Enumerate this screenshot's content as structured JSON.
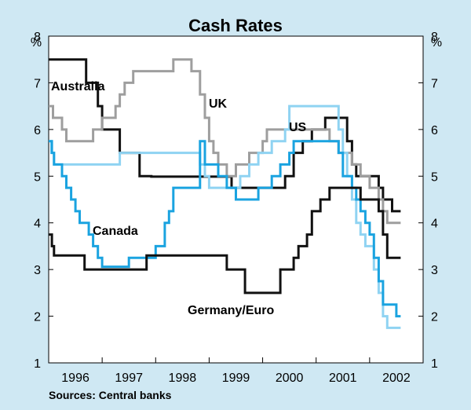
{
  "chart_data": {
    "type": "line",
    "title": "Cash Rates",
    "ylabel": "%",
    "ylim": [
      1,
      8
    ],
    "yticks": [
      1,
      2,
      3,
      4,
      5,
      6,
      7,
      8
    ],
    "xlim": [
      1995.5,
      2002.5
    ],
    "xticks": [
      {
        "label": "1996",
        "x": 1996
      },
      {
        "label": "1997",
        "x": 1997
      },
      {
        "label": "1998",
        "x": 1998
      },
      {
        "label": "1999",
        "x": 1999
      },
      {
        "label": "2000",
        "x": 2000
      },
      {
        "label": "2001",
        "x": 2001
      },
      {
        "label": "2002",
        "x": 2002
      }
    ],
    "source": "Sources: Central banks",
    "series": [
      {
        "name": "Australia",
        "label": "Australia",
        "color": "#111111",
        "points": [
          [
            1995.5,
            7.5
          ],
          [
            1996.2,
            7.5
          ],
          [
            1996.2,
            7.0
          ],
          [
            1996.42,
            7.0
          ],
          [
            1996.42,
            6.5
          ],
          [
            1996.5,
            6.5
          ],
          [
            1996.5,
            6.0
          ],
          [
            1996.83,
            6.0
          ],
          [
            1996.83,
            5.5
          ],
          [
            1997.2,
            5.5
          ],
          [
            1997.2,
            5.0
          ],
          [
            1997.42,
            5.0
          ],
          [
            1997.42,
            4.99
          ],
          [
            1998.92,
            4.99
          ],
          [
            1998.92,
            4.75
          ],
          [
            1999.92,
            4.75
          ],
          [
            1999.92,
            5.0
          ],
          [
            2000.08,
            5.0
          ],
          [
            2000.08,
            5.5
          ],
          [
            2000.25,
            5.5
          ],
          [
            2000.25,
            5.75
          ],
          [
            2000.42,
            5.75
          ],
          [
            2000.42,
            6.0
          ],
          [
            2000.67,
            6.0
          ],
          [
            2000.67,
            6.25
          ],
          [
            2001.08,
            6.25
          ],
          [
            2001.08,
            5.75
          ],
          [
            2001.17,
            5.75
          ],
          [
            2001.17,
            5.25
          ],
          [
            2001.25,
            5.25
          ],
          [
            2001.25,
            5.0
          ],
          [
            2001.67,
            5.0
          ],
          [
            2001.67,
            4.75
          ],
          [
            2001.75,
            4.75
          ],
          [
            2001.75,
            4.5
          ],
          [
            2001.92,
            4.5
          ],
          [
            2001.92,
            4.25
          ],
          [
            2002.08,
            4.25
          ]
        ]
      },
      {
        "name": "UK",
        "label": "UK",
        "color": "#9e9e9e",
        "points": [
          [
            1995.5,
            6.5
          ],
          [
            1995.58,
            6.5
          ],
          [
            1995.58,
            6.25
          ],
          [
            1995.75,
            6.25
          ],
          [
            1995.75,
            6.0
          ],
          [
            1995.83,
            6.0
          ],
          [
            1995.83,
            5.75
          ],
          [
            1996.33,
            5.75
          ],
          [
            1996.33,
            6.0
          ],
          [
            1996.5,
            6.0
          ],
          [
            1996.5,
            6.25
          ],
          [
            1996.75,
            6.25
          ],
          [
            1996.75,
            6.5
          ],
          [
            1996.83,
            6.5
          ],
          [
            1996.83,
            6.75
          ],
          [
            1996.92,
            6.75
          ],
          [
            1996.92,
            7.0
          ],
          [
            1997.08,
            7.0
          ],
          [
            1997.08,
            7.25
          ],
          [
            1997.83,
            7.25
          ],
          [
            1997.83,
            7.5
          ],
          [
            1998.17,
            7.5
          ],
          [
            1998.17,
            7.25
          ],
          [
            1998.33,
            7.25
          ],
          [
            1998.33,
            6.75
          ],
          [
            1998.42,
            6.75
          ],
          [
            1998.42,
            6.25
          ],
          [
            1998.5,
            6.25
          ],
          [
            1998.5,
            5.75
          ],
          [
            1998.58,
            5.75
          ],
          [
            1998.58,
            5.5
          ],
          [
            1998.67,
            5.5
          ],
          [
            1998.67,
            5.25
          ],
          [
            1998.83,
            5.25
          ],
          [
            1998.83,
            5.0
          ],
          [
            1999.0,
            5.0
          ],
          [
            1999.0,
            5.25
          ],
          [
            1999.25,
            5.25
          ],
          [
            1999.25,
            5.5
          ],
          [
            1999.5,
            5.5
          ],
          [
            1999.5,
            5.75
          ],
          [
            1999.58,
            5.75
          ],
          [
            1999.58,
            6.0
          ],
          [
            2000.75,
            6.0
          ],
          [
            2000.75,
            5.75
          ],
          [
            2000.92,
            5.75
          ],
          [
            2000.92,
            5.5
          ],
          [
            2001.17,
            5.5
          ],
          [
            2001.17,
            5.25
          ],
          [
            2001.33,
            5.25
          ],
          [
            2001.33,
            5.0
          ],
          [
            2001.5,
            5.0
          ],
          [
            2001.5,
            4.75
          ],
          [
            2001.67,
            4.75
          ],
          [
            2001.67,
            4.5
          ],
          [
            2001.75,
            4.5
          ],
          [
            2001.75,
            4.25
          ],
          [
            2001.83,
            4.25
          ],
          [
            2001.83,
            4.0
          ],
          [
            2002.08,
            4.0
          ]
        ]
      },
      {
        "name": "US",
        "label": "US",
        "color": "#8fd3f2",
        "points": [
          [
            1995.5,
            5.75
          ],
          [
            1995.55,
            5.75
          ],
          [
            1995.55,
            5.5
          ],
          [
            1995.6,
            5.5
          ],
          [
            1995.6,
            5.25
          ],
          [
            1996.83,
            5.25
          ],
          [
            1996.83,
            5.5
          ],
          [
            1998.33,
            5.5
          ],
          [
            1998.33,
            5.25
          ],
          [
            1998.42,
            5.25
          ],
          [
            1998.42,
            5.0
          ],
          [
            1998.5,
            5.0
          ],
          [
            1998.5,
            4.75
          ],
          [
            1999.08,
            4.75
          ],
          [
            1999.08,
            5.0
          ],
          [
            1999.25,
            5.0
          ],
          [
            1999.25,
            5.25
          ],
          [
            1999.42,
            5.25
          ],
          [
            1999.42,
            5.5
          ],
          [
            1999.67,
            5.5
          ],
          [
            1999.67,
            5.75
          ],
          [
            1999.92,
            5.75
          ],
          [
            1999.92,
            6.0
          ],
          [
            2000.0,
            6.0
          ],
          [
            2000.0,
            6.5
          ],
          [
            2000.92,
            6.5
          ],
          [
            2000.92,
            6.0
          ],
          [
            2001.0,
            6.0
          ],
          [
            2001.0,
            5.5
          ],
          [
            2001.08,
            5.5
          ],
          [
            2001.08,
            5.0
          ],
          [
            2001.17,
            5.0
          ],
          [
            2001.17,
            4.5
          ],
          [
            2001.25,
            4.5
          ],
          [
            2001.25,
            4.0
          ],
          [
            2001.33,
            4.0
          ],
          [
            2001.33,
            3.75
          ],
          [
            2001.42,
            3.75
          ],
          [
            2001.42,
            3.5
          ],
          [
            2001.58,
            3.5
          ],
          [
            2001.58,
            3.0
          ],
          [
            2001.67,
            3.0
          ],
          [
            2001.67,
            2.5
          ],
          [
            2001.75,
            2.5
          ],
          [
            2001.75,
            2.0
          ],
          [
            2001.83,
            2.0
          ],
          [
            2001.83,
            1.75
          ],
          [
            2002.08,
            1.75
          ]
        ]
      },
      {
        "name": "Canada",
        "label": "Canada",
        "color": "#1aa3e0",
        "points": [
          [
            1995.5,
            5.75
          ],
          [
            1995.56,
            5.75
          ],
          [
            1995.56,
            5.5
          ],
          [
            1995.6,
            5.5
          ],
          [
            1995.6,
            5.25
          ],
          [
            1995.75,
            5.25
          ],
          [
            1995.75,
            5.0
          ],
          [
            1995.83,
            5.0
          ],
          [
            1995.83,
            4.75
          ],
          [
            1995.92,
            4.75
          ],
          [
            1995.92,
            4.5
          ],
          [
            1996.0,
            4.5
          ],
          [
            1996.0,
            4.25
          ],
          [
            1996.08,
            4.25
          ],
          [
            1996.08,
            4.0
          ],
          [
            1996.25,
            4.0
          ],
          [
            1996.25,
            3.75
          ],
          [
            1996.33,
            3.75
          ],
          [
            1996.33,
            3.5
          ],
          [
            1996.42,
            3.5
          ],
          [
            1996.42,
            3.25
          ],
          [
            1996.5,
            3.25
          ],
          [
            1996.5,
            3.06
          ],
          [
            1997.0,
            3.06
          ],
          [
            1997.0,
            3.25
          ],
          [
            1997.5,
            3.25
          ],
          [
            1997.5,
            3.5
          ],
          [
            1997.67,
            3.5
          ],
          [
            1997.67,
            4.0
          ],
          [
            1997.75,
            4.0
          ],
          [
            1997.75,
            4.25
          ],
          [
            1997.83,
            4.25
          ],
          [
            1997.83,
            4.75
          ],
          [
            1998.33,
            4.75
          ],
          [
            1998.33,
            5.75
          ],
          [
            1998.42,
            5.75
          ],
          [
            1998.42,
            5.25
          ],
          [
            1998.67,
            5.25
          ],
          [
            1998.67,
            5.0
          ],
          [
            1998.83,
            5.0
          ],
          [
            1998.83,
            4.75
          ],
          [
            1999.0,
            4.75
          ],
          [
            1999.0,
            4.5
          ],
          [
            1999.42,
            4.5
          ],
          [
            1999.42,
            4.75
          ],
          [
            1999.67,
            4.75
          ],
          [
            1999.67,
            5.0
          ],
          [
            1999.83,
            5.0
          ],
          [
            1999.83,
            5.25
          ],
          [
            2000.0,
            5.25
          ],
          [
            2000.0,
            5.5
          ],
          [
            2000.08,
            5.5
          ],
          [
            2000.08,
            5.75
          ],
          [
            2000.92,
            5.75
          ],
          [
            2000.92,
            5.5
          ],
          [
            2001.0,
            5.5
          ],
          [
            2001.0,
            5.0
          ],
          [
            2001.17,
            5.0
          ],
          [
            2001.17,
            4.75
          ],
          [
            2001.25,
            4.75
          ],
          [
            2001.25,
            4.5
          ],
          [
            2001.33,
            4.5
          ],
          [
            2001.33,
            4.25
          ],
          [
            2001.42,
            4.25
          ],
          [
            2001.42,
            4.0
          ],
          [
            2001.5,
            4.0
          ],
          [
            2001.5,
            3.75
          ],
          [
            2001.58,
            3.75
          ],
          [
            2001.58,
            3.25
          ],
          [
            2001.67,
            3.25
          ],
          [
            2001.67,
            2.75
          ],
          [
            2001.75,
            2.75
          ],
          [
            2001.75,
            2.25
          ],
          [
            2002.0,
            2.25
          ],
          [
            2002.0,
            2.0
          ],
          [
            2002.08,
            2.0
          ]
        ]
      },
      {
        "name": "Germany/Euro",
        "label": "Germany/Euro",
        "color": "#111111",
        "points": [
          [
            1995.5,
            3.75
          ],
          [
            1995.56,
            3.75
          ],
          [
            1995.56,
            3.5
          ],
          [
            1995.6,
            3.5
          ],
          [
            1995.6,
            3.3
          ],
          [
            1996.17,
            3.3
          ],
          [
            1996.17,
            3.0
          ],
          [
            1997.33,
            3.0
          ],
          [
            1997.33,
            3.3
          ],
          [
            1998.83,
            3.3
          ],
          [
            1998.83,
            3.0
          ],
          [
            1999.17,
            3.0
          ],
          [
            1999.17,
            2.5
          ],
          [
            1999.83,
            2.5
          ],
          [
            1999.83,
            3.0
          ],
          [
            2000.08,
            3.0
          ],
          [
            2000.08,
            3.25
          ],
          [
            2000.17,
            3.25
          ],
          [
            2000.17,
            3.5
          ],
          [
            2000.33,
            3.5
          ],
          [
            2000.33,
            3.75
          ],
          [
            2000.42,
            3.75
          ],
          [
            2000.42,
            4.25
          ],
          [
            2000.58,
            4.25
          ],
          [
            2000.58,
            4.5
          ],
          [
            2000.75,
            4.5
          ],
          [
            2000.75,
            4.75
          ],
          [
            2001.33,
            4.75
          ],
          [
            2001.33,
            4.5
          ],
          [
            2001.67,
            4.5
          ],
          [
            2001.67,
            4.25
          ],
          [
            2001.75,
            4.25
          ],
          [
            2001.75,
            3.75
          ],
          [
            2001.83,
            3.75
          ],
          [
            2001.83,
            3.25
          ],
          [
            2002.08,
            3.25
          ]
        ]
      }
    ]
  }
}
